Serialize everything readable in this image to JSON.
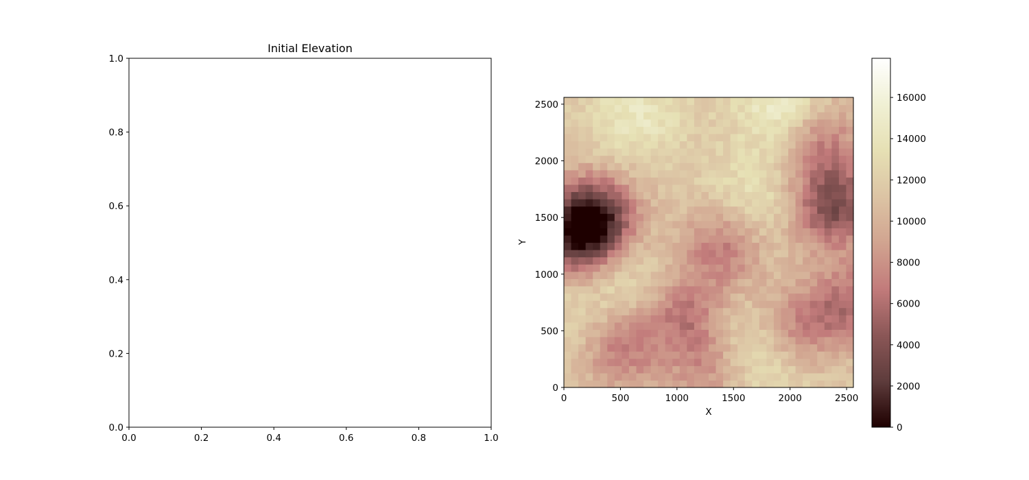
{
  "chart_data": [
    {
      "type": "line",
      "title": "Initial Elevation",
      "xlabel": "",
      "ylabel": "",
      "xlim": [
        0.0,
        1.0
      ],
      "ylim": [
        0.0,
        1.0
      ],
      "xticks": [
        "0.0",
        "0.2",
        "0.4",
        "0.6",
        "0.8",
        "1.0"
      ],
      "yticks": [
        "0.0",
        "0.2",
        "0.4",
        "0.6",
        "0.8",
        "1.0"
      ],
      "series": [],
      "grid": false
    },
    {
      "type": "heatmap",
      "title": "",
      "xlabel": "X",
      "ylabel": "Y",
      "xlim": [
        0,
        2560
      ],
      "ylim": [
        0,
        2560
      ],
      "xticks": [
        "0",
        "500",
        "1000",
        "1500",
        "2000",
        "2500"
      ],
      "yticks": [
        "0",
        "500",
        "1000",
        "1500",
        "2000",
        "2500"
      ],
      "colormap": "pink",
      "colorbar": {
        "range": [
          0,
          17900
        ],
        "ticks": [
          "0",
          "2000",
          "4000",
          "6000",
          "8000",
          "10000",
          "12000",
          "14000",
          "16000"
        ],
        "colors": [
          "#1e0000",
          "#5e3c3c",
          "#8b5757",
          "#c27b7b",
          "#d1a490",
          "#dcc4a4",
          "#e6e0b4",
          "#f0f0d4",
          "#ffffff"
        ]
      },
      "grid_size": [
        40,
        40
      ],
      "low_regions": [
        {
          "x": 120,
          "y": 1350,
          "value": 2500
        },
        {
          "x": 300,
          "y": 1520,
          "value": 4500
        },
        {
          "x": 2390,
          "y": 1600,
          "value": 3500
        },
        {
          "x": 1400,
          "y": 1250,
          "value": 6500
        },
        {
          "x": 2270,
          "y": 2200,
          "value": 6800
        },
        {
          "x": 480,
          "y": 340,
          "value": 6500
        },
        {
          "x": 1080,
          "y": 640,
          "value": 6800
        },
        {
          "x": 2060,
          "y": 520,
          "value": 7000
        },
        {
          "x": 2540,
          "y": 750,
          "value": 6500
        },
        {
          "x": 1290,
          "y": 190,
          "value": 7500
        }
      ],
      "high_regions": [
        {
          "x": 1950,
          "y": 2480,
          "value": 16500
        },
        {
          "x": 650,
          "y": 2400,
          "value": 15000
        },
        {
          "x": 1650,
          "y": 1650,
          "value": 14500
        },
        {
          "x": 500,
          "y": 1000,
          "value": 14000
        },
        {
          "x": 1500,
          "y": 400,
          "value": 14000
        },
        {
          "x": 1850,
          "y": 250,
          "value": 14000
        },
        {
          "x": 150,
          "y": 500,
          "value": 13500
        }
      ],
      "base_value": 11500
    }
  ]
}
